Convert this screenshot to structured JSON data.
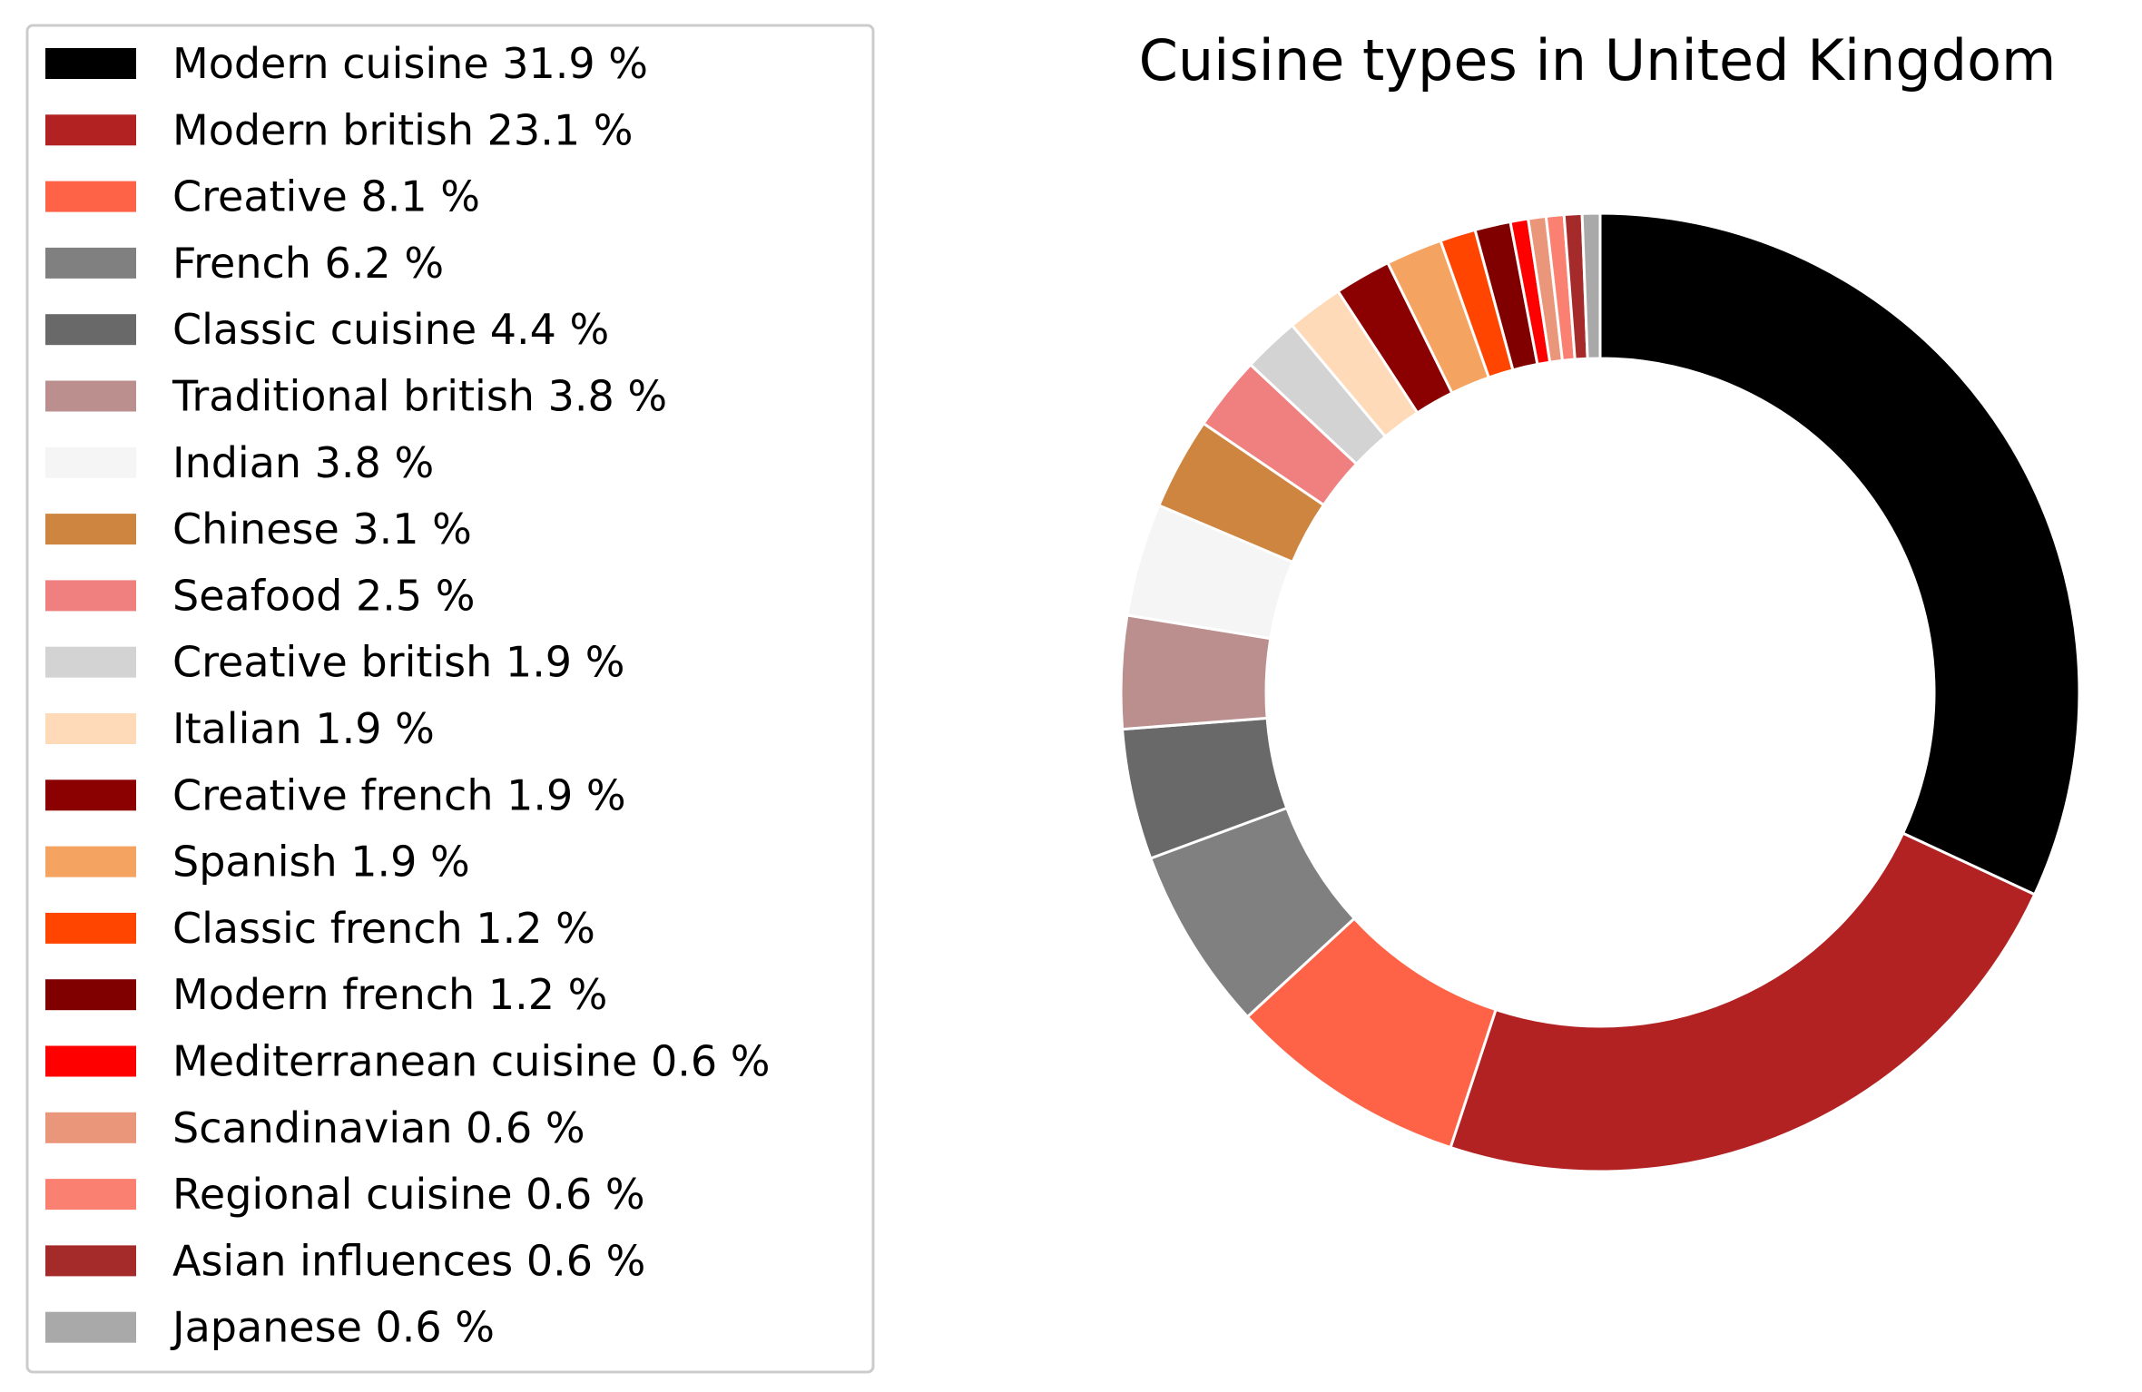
{
  "chart_data": {
    "type": "pie",
    "donut": true,
    "title": "Cuisine types in United Kingdom",
    "legend_position": "left",
    "start_angle_deg": 90,
    "direction": "clockwise",
    "slices": [
      {
        "label": "Modern cuisine",
        "value": 31.9,
        "pct_label": "31.9 %",
        "color": "#000000"
      },
      {
        "label": "Modern british",
        "value": 23.1,
        "pct_label": "23.1 %",
        "color": "#b22222"
      },
      {
        "label": "Creative",
        "value": 8.1,
        "pct_label": "8.1 %",
        "color": "#ff6347"
      },
      {
        "label": "French",
        "value": 6.2,
        "pct_label": "6.2 %",
        "color": "#808080"
      },
      {
        "label": "Classic cuisine",
        "value": 4.4,
        "pct_label": "4.4 %",
        "color": "#696969"
      },
      {
        "label": "Traditional british",
        "value": 3.8,
        "pct_label": "3.8 %",
        "color": "#bc8f8f"
      },
      {
        "label": "Indian",
        "value": 3.8,
        "pct_label": "3.8 %",
        "color": "#f5f5f5"
      },
      {
        "label": "Chinese",
        "value": 3.1,
        "pct_label": "3.1 %",
        "color": "#cd853f"
      },
      {
        "label": "Seafood",
        "value": 2.5,
        "pct_label": "2.5 %",
        "color": "#f08080"
      },
      {
        "label": "Creative british",
        "value": 1.9,
        "pct_label": "1.9 %",
        "color": "#d3d3d3"
      },
      {
        "label": "Italian",
        "value": 1.9,
        "pct_label": "1.9 %",
        "color": "#ffdab9"
      },
      {
        "label": "Creative french",
        "value": 1.9,
        "pct_label": "1.9 %",
        "color": "#8b0000"
      },
      {
        "label": "Spanish",
        "value": 1.9,
        "pct_label": "1.9 %",
        "color": "#f4a460"
      },
      {
        "label": "Classic french",
        "value": 1.2,
        "pct_label": "1.2 %",
        "color": "#ff4500"
      },
      {
        "label": "Modern french",
        "value": 1.2,
        "pct_label": "1.2 %",
        "color": "#800000"
      },
      {
        "label": "Mediterranean cuisine",
        "value": 0.6,
        "pct_label": "0.6 %",
        "color": "#ff0000"
      },
      {
        "label": "Scandinavian",
        "value": 0.6,
        "pct_label": "0.6 %",
        "color": "#e9967a"
      },
      {
        "label": "Regional cuisine",
        "value": 0.6,
        "pct_label": "0.6 %",
        "color": "#fa8072"
      },
      {
        "label": "Asian influences",
        "value": 0.6,
        "pct_label": "0.6 %",
        "color": "#a52a2a"
      },
      {
        "label": "Japanese",
        "value": 0.6,
        "pct_label": "0.6 %",
        "color": "#a9a9a9"
      }
    ]
  }
}
